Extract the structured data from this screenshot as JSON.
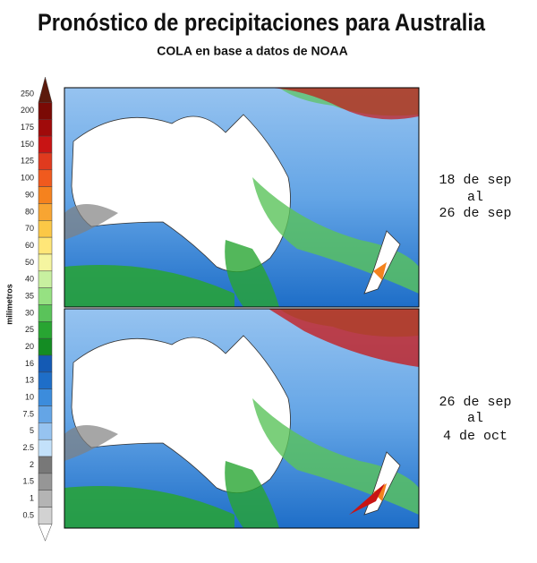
{
  "title": "Pronóstico de precipitaciones para Australia",
  "subtitle": "COLA en base a datos de NOAA",
  "legend": {
    "unit": "milímetros",
    "levels": [
      {
        "value": 250,
        "color": "#5c1a0c"
      },
      {
        "value": 200,
        "color": "#7a0a05"
      },
      {
        "value": 175,
        "color": "#a00a0a"
      },
      {
        "value": 150,
        "color": "#c81414"
      },
      {
        "value": 125,
        "color": "#e03a1e"
      },
      {
        "value": 100,
        "color": "#f05a1e"
      },
      {
        "value": 90,
        "color": "#f5821e"
      },
      {
        "value": 80,
        "color": "#f8a532"
      },
      {
        "value": 70,
        "color": "#fcc846"
      },
      {
        "value": 60,
        "color": "#ffe678"
      },
      {
        "value": 50,
        "color": "#f5f5a0"
      },
      {
        "value": 40,
        "color": "#c8f0a0"
      },
      {
        "value": 35,
        "color": "#96e182"
      },
      {
        "value": 30,
        "color": "#5ac35a"
      },
      {
        "value": 25,
        "color": "#28a532"
      },
      {
        "value": 20,
        "color": "#148c23"
      },
      {
        "value": 16,
        "color": "#145ab4"
      },
      {
        "value": 13,
        "color": "#1e6ec8"
      },
      {
        "value": 10,
        "color": "#3c8cdc"
      },
      {
        "value": 7.5,
        "color": "#64a5e6"
      },
      {
        "value": 5,
        "color": "#96c3f0"
      },
      {
        "value": 2.5,
        "color": "#c3e1fa"
      },
      {
        "value": 2,
        "color": "#787878"
      },
      {
        "value": 1.5,
        "color": "#969696"
      },
      {
        "value": 1,
        "color": "#b4b4b4"
      },
      {
        "value": 0.5,
        "color": "#d2d2d2"
      }
    ]
  },
  "panels": [
    {
      "period": [
        "18 de sep",
        "al",
        "26 de sep"
      ]
    },
    {
      "period": [
        "26 de sep",
        "al",
        "4 de oct"
      ]
    }
  ]
}
